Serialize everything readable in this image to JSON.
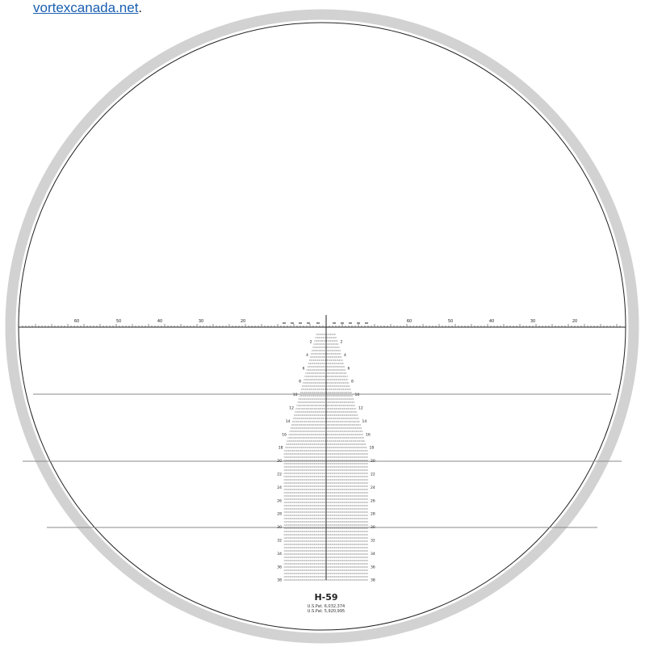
{
  "link": {
    "text": "vortexcanada.net",
    "suffix": "."
  },
  "reticle": {
    "name": "H-59",
    "patents": [
      "U.S.Pat. 6,032,374",
      "U.S.Pat. 5,920,995"
    ],
    "horizontal_major_labels": [
      "60",
      "50",
      "40",
      "30",
      "20"
    ],
    "tree_row_labels": [
      "2",
      "4",
      "6",
      "8",
      "10",
      "12",
      "14",
      "16",
      "18",
      "20",
      "22",
      "24",
      "26",
      "28",
      "30",
      "32",
      "34",
      "36",
      "38"
    ]
  },
  "colors": {
    "ring": "#d2d2d2",
    "lines": "#222222",
    "guide_lines": "#8a8a8a",
    "link": "#1a5fb0"
  }
}
